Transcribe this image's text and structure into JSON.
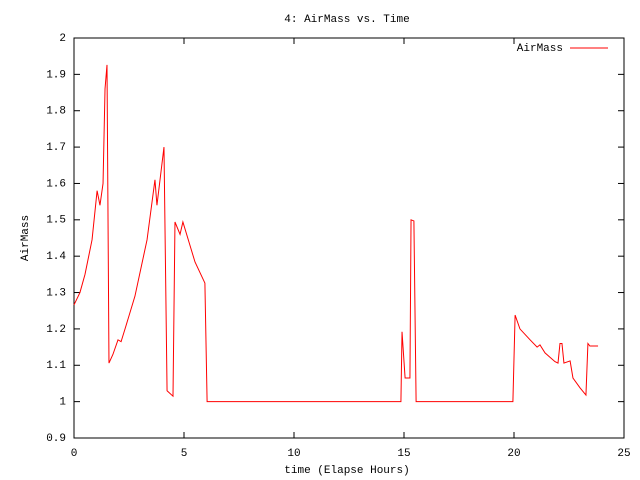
{
  "chart_data": {
    "type": "line",
    "title": "4: AirMass vs. Time",
    "xlabel": "time (Elapse Hours)",
    "ylabel": "AirMass",
    "x": [
      0,
      0.27,
      0.5,
      0.82,
      1.05,
      1.18,
      1.32,
      1.41,
      1.5,
      1.59,
      1.77,
      2.0,
      2.14,
      2.32,
      2.77,
      3.32,
      3.68,
      3.77,
      3.91,
      4.09,
      4.23,
      4.5,
      4.59,
      4.82,
      4.95,
      5.27,
      5.5,
      5.95,
      6.05,
      14.86,
      14.91,
      15.05,
      15.27,
      15.32,
      15.45,
      15.55,
      19.95,
      20.05,
      20.27,
      20.73,
      21.05,
      21.18,
      21.41,
      21.86,
      22.0,
      22.09,
      22.18,
      22.27,
      22.55,
      22.68,
      23.0,
      23.27,
      23.36,
      23.45,
      23.82
    ],
    "series": [
      {
        "name": "AirMass",
        "color": "#ff0000",
        "values": [
          1.266,
          1.3,
          1.35,
          1.445,
          1.58,
          1.54,
          1.6,
          1.86,
          1.926,
          1.106,
          1.13,
          1.17,
          1.165,
          1.2,
          1.29,
          1.445,
          1.61,
          1.54,
          1.61,
          1.7,
          1.03,
          1.015,
          1.494,
          1.46,
          1.494,
          1.43,
          1.384,
          1.326,
          1.0,
          1.0,
          1.192,
          1.065,
          1.065,
          1.5,
          1.497,
          1.0,
          1.0,
          1.238,
          1.2,
          1.17,
          1.15,
          1.156,
          1.134,
          1.11,
          1.106,
          1.16,
          1.16,
          1.106,
          1.112,
          1.065,
          1.038,
          1.018,
          1.16,
          1.153,
          1.153
        ]
      }
    ],
    "xlim": [
      0,
      25
    ],
    "xticks": [
      0,
      5,
      10,
      15,
      20,
      25
    ],
    "ylim": [
      0.9,
      2
    ],
    "yticks": [
      0.9,
      1,
      1.1,
      1.2,
      1.3,
      1.4,
      1.5,
      1.6,
      1.7,
      1.8,
      1.9,
      2
    ],
    "grid": false,
    "legend": "top-right"
  }
}
